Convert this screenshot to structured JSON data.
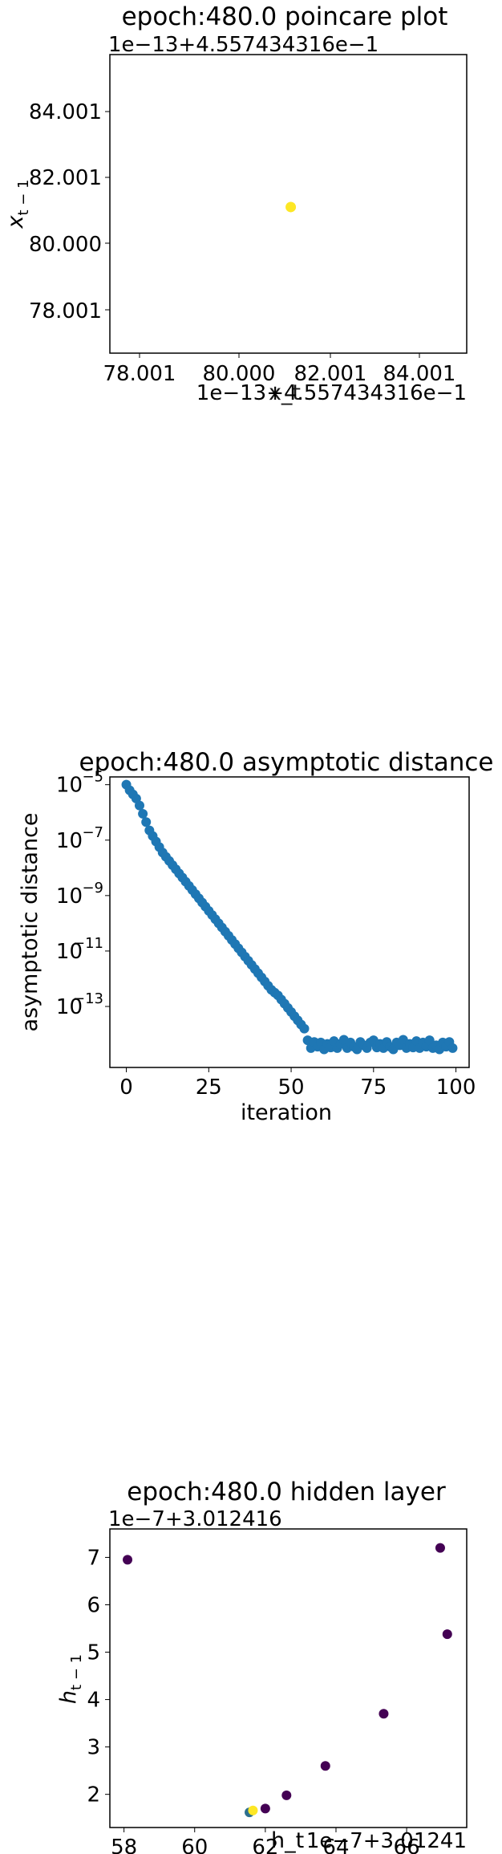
{
  "chart_data": [
    {
      "type": "scatter",
      "title": "epoch:480.0 poincare plot",
      "xlabel": "x_t",
      "ylabel": "x_{t-1}",
      "y_offset_text": "1e−13+4.557434316e−1",
      "x_offset_text": "1e−13+4.557434316e−1",
      "x_ticks": [
        "78.001",
        "80.000",
        "82.001",
        "84.001"
      ],
      "x_tick_values": [
        78.001,
        80.0,
        82.001,
        84.001
      ],
      "y_ticks": [
        "84.001",
        "82.001",
        "80.000",
        "78.001"
      ],
      "y_tick_values": [
        84.001,
        82.001,
        80.0,
        78.001
      ],
      "xlim": [
        75.6,
        86.45
      ],
      "ylim": [
        76.6,
        86.0
      ],
      "points": [
        {
          "x": 81.1,
          "y": 81.2,
          "color": "#fde725"
        }
      ],
      "grid": false
    },
    {
      "type": "scatter",
      "title": "epoch:480.0 asymptotic distance",
      "xlabel": "iteration",
      "ylabel": "asymptotic distance",
      "yscale": "log",
      "x_ticks": [
        "0",
        "25",
        "50",
        "75",
        "100"
      ],
      "x_tick_values": [
        0,
        25,
        50,
        75,
        100
      ],
      "y_ticks": [
        {
          "base": "10",
          "exp": "−5",
          "value": -5
        },
        {
          "base": "10",
          "exp": "−7",
          "value": -7
        },
        {
          "base": "10",
          "exp": "−9",
          "value": -9
        },
        {
          "base": "10",
          "exp": "−11",
          "value": -11
        },
        {
          "base": "10",
          "exp": "−13",
          "value": -13
        }
      ],
      "xlim": [
        -5,
        104
      ],
      "ylim_log10": [
        -15.2,
        -4.72
      ],
      "x": [
        0,
        1,
        2,
        3,
        4,
        5,
        6,
        7,
        8,
        9,
        10,
        11,
        12,
        13,
        14,
        15,
        16,
        17,
        18,
        19,
        20,
        21,
        22,
        23,
        24,
        25,
        26,
        27,
        28,
        29,
        30,
        31,
        32,
        33,
        34,
        35,
        36,
        37,
        38,
        39,
        40,
        41,
        42,
        43,
        44,
        45,
        46,
        47,
        48,
        49,
        50,
        51,
        52,
        53,
        54,
        55,
        56,
        57,
        58,
        59,
        60,
        61,
        62,
        63,
        64,
        65,
        66,
        67,
        68,
        69,
        70,
        71,
        72,
        73,
        74,
        75,
        76,
        77,
        78,
        79,
        80,
        81,
        82,
        83,
        84,
        85,
        86,
        87,
        88,
        89,
        90,
        91,
        92,
        93,
        94,
        95,
        96,
        97,
        98,
        99
      ],
      "values_log10": [
        -5.0,
        -5.2,
        -5.35,
        -5.5,
        -5.75,
        -6.05,
        -6.35,
        -6.65,
        -6.85,
        -7.05,
        -7.25,
        -7.45,
        -7.6,
        -7.75,
        -7.9,
        -8.05,
        -8.2,
        -8.35,
        -8.5,
        -8.65,
        -8.8,
        -8.95,
        -9.1,
        -9.25,
        -9.4,
        -9.55,
        -9.7,
        -9.85,
        -10.0,
        -10.15,
        -10.3,
        -10.45,
        -10.6,
        -10.75,
        -10.9,
        -11.05,
        -11.2,
        -11.35,
        -11.5,
        -11.65,
        -11.8,
        -11.95,
        -12.1,
        -12.25,
        -12.4,
        -12.5,
        -12.6,
        -12.75,
        -12.9,
        -13.05,
        -13.2,
        -13.35,
        -13.5,
        -13.65,
        -13.8,
        -14.22,
        -14.5,
        -14.28,
        -14.45,
        -14.3,
        -14.55,
        -14.35,
        -14.48,
        -14.25,
        -14.5,
        -14.35,
        -14.2,
        -14.5,
        -14.3,
        -14.45,
        -14.55,
        -14.28,
        -14.4,
        -14.5,
        -14.3,
        -14.22,
        -14.48,
        -14.35,
        -14.5,
        -14.28,
        -14.45,
        -14.55,
        -14.3,
        -14.4,
        -14.2,
        -14.5,
        -14.35,
        -14.48,
        -14.25,
        -14.5,
        -14.3,
        -14.45,
        -14.22,
        -14.5,
        -14.4,
        -14.55,
        -14.3,
        -14.45,
        -14.28,
        -14.5
      ],
      "color": "#1f77b4",
      "grid": false
    },
    {
      "type": "scatter",
      "title": "epoch:480.0 hidden layer",
      "xlabel": "h_t",
      "ylabel": "h_{t-1}",
      "y_offset_text": "1e−7+3.012416",
      "x_offset_text": "1e−7+3.01241",
      "x_ticks": [
        "58",
        "60",
        "62",
        "64",
        "66"
      ],
      "x_tick_values": [
        58,
        60,
        62,
        64,
        66
      ],
      "y_ticks": [
        "7",
        "6",
        "5",
        "4",
        "3",
        "2"
      ],
      "y_tick_values": [
        7,
        6,
        5,
        4,
        3,
        2
      ],
      "xlim": [
        57.6,
        67.7
      ],
      "ylim": [
        1.3,
        7.6
      ],
      "points": [
        {
          "x": 58.1,
          "y": 6.95,
          "color": "#440154"
        },
        {
          "x": 66.95,
          "y": 7.2,
          "color": "#440154"
        },
        {
          "x": 67.15,
          "y": 5.38,
          "color": "#440154"
        },
        {
          "x": 65.35,
          "y": 3.7,
          "color": "#440154"
        },
        {
          "x": 63.7,
          "y": 2.6,
          "color": "#440154"
        },
        {
          "x": 62.6,
          "y": 1.98,
          "color": "#440154"
        },
        {
          "x": 62.0,
          "y": 1.7,
          "color": "#440154"
        },
        {
          "x": 61.55,
          "y": 1.62,
          "color": "#2d708e"
        },
        {
          "x": 61.65,
          "y": 1.66,
          "color": "#fde725"
        }
      ],
      "grid": false
    }
  ]
}
